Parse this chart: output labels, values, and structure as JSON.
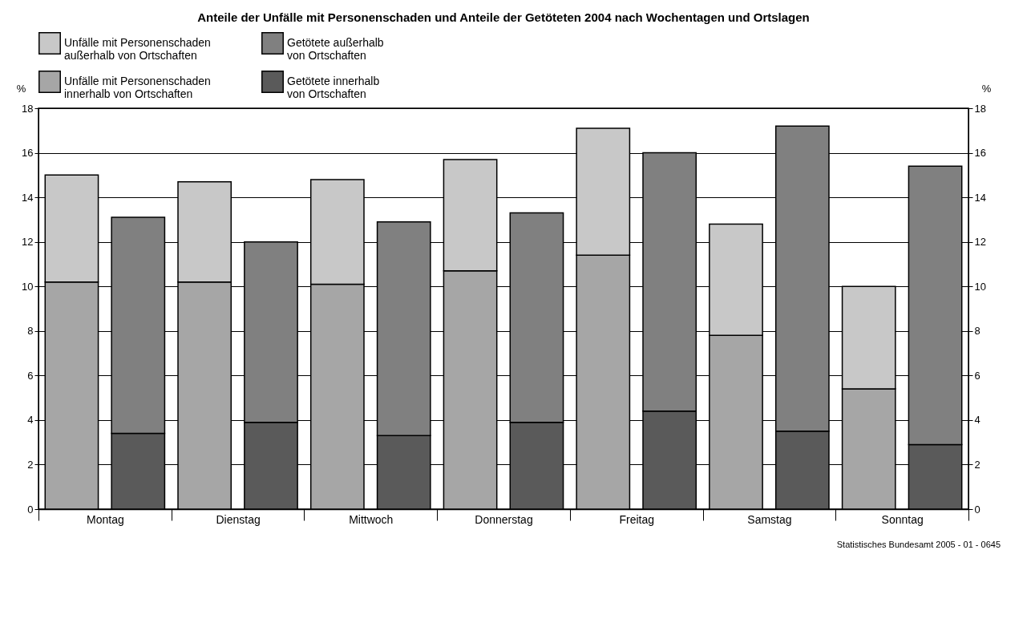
{
  "chart_data": {
    "type": "bar",
    "stacked": true,
    "title": "Anteile der Unfälle mit Personenschaden und Anteile der Getöteten 2004 nach Wochentagen und Ortslagen",
    "ylabel": "%",
    "y2label": "%",
    "categories": [
      "Montag",
      null,
      "Dienstag",
      null,
      "Mittwoch",
      null,
      "Donnerstag",
      null,
      "Freitag",
      null,
      "Samstag",
      null,
      "Sonntag",
      null
    ],
    "series": [
      {
        "name": "Unfälle mit Personenschaden\ninnerhalb von Ortschaften",
        "color": "#a6a6a6",
        "values": [
          10.2,
          null,
          10.2,
          null,
          10.1,
          null,
          10.7,
          null,
          11.4,
          null,
          7.8,
          null,
          5.4,
          null
        ]
      },
      {
        "name": "Unfälle mit Personenschaden\naußerhalb von Ortschaften",
        "color": "#c8c8c8",
        "values": [
          4.8,
          null,
          4.5,
          null,
          4.7,
          null,
          5.0,
          null,
          5.7,
          null,
          5.0,
          null,
          4.6,
          null
        ]
      },
      {
        "name": "Getötete innerhalb\nvon Ortschaften",
        "color": "#5a5a5a",
        "values": [
          null,
          3.4,
          null,
          3.9,
          null,
          3.3,
          null,
          3.9,
          null,
          4.4,
          null,
          3.5,
          null,
          2.9
        ]
      },
      {
        "name": "Getötete außerhalb\nvon Ortschaften",
        "color": "#808080",
        "values": [
          null,
          9.7,
          null,
          8.1,
          null,
          9.6,
          null,
          9.4,
          null,
          11.6,
          null,
          13.7,
          null,
          12.5
        ]
      }
    ],
    "ylim": [
      0,
      18
    ],
    "yticks": [
      0,
      2,
      4,
      6,
      8,
      10,
      12,
      14,
      16,
      18
    ],
    "y2lim": [
      0,
      18
    ],
    "y2ticks": [
      0,
      2,
      4,
      6,
      8,
      10,
      12,
      14,
      16,
      18
    ],
    "grid": "y",
    "legend": "top",
    "annotations": [
      "Statistisches Bundesamt 2005 - 01 - 0645"
    ]
  }
}
